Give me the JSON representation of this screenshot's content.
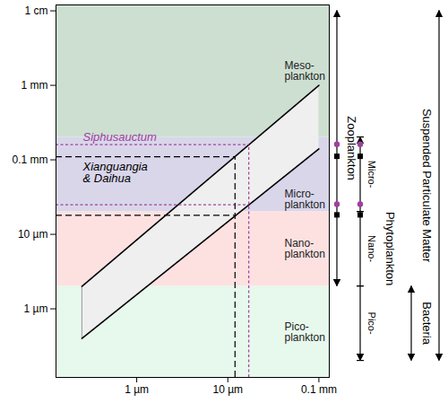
{
  "chart_data": {
    "type": "line",
    "log": true,
    "xlim": [
      0.13,
      130
    ],
    "xticks": [
      {
        "value": 1,
        "label": "1 µm"
      },
      {
        "value": 10,
        "label": "10 µm"
      },
      {
        "value": 100,
        "label": "0.1 mm"
      }
    ],
    "ylim": [
      0.12,
      12000
    ],
    "yticks": [
      {
        "value": 1,
        "label": "1 µm"
      },
      {
        "value": 10,
        "label": "10 µm"
      },
      {
        "value": 100,
        "label": "0.1 mm"
      },
      {
        "value": 1000,
        "label": "1 mm"
      },
      {
        "value": 10000,
        "label": "1 cm"
      }
    ],
    "size_classes": [
      {
        "label": [
          "Meso-",
          "plankton"
        ],
        "range": [
          200,
          12000
        ],
        "color": "#cddfd1"
      },
      {
        "label": [
          "Micro-",
          "plankton"
        ],
        "range": [
          20,
          200
        ],
        "color": "#d9d6ea"
      },
      {
        "label": [
          "Nano-",
          "plankton"
        ],
        "range": [
          2,
          20
        ],
        "color": "#fde1e1"
      },
      {
        "label": [
          "Pico-",
          "plankton"
        ],
        "range": [
          0.12,
          2
        ],
        "color": "#e7f8ec"
      }
    ],
    "capture_band": {
      "color": "#efefef",
      "x": [
        0.25,
        100
      ],
      "lower": [
        0.4,
        140
      ],
      "upper": [
        2,
        1000
      ]
    },
    "organisms": [
      {
        "label": [
          "Siphusauctum"
        ],
        "color": "#a040a0",
        "line_style": "dotted",
        "marker": "circle",
        "x": 17,
        "y_range": [
          25,
          160
        ]
      },
      {
        "label": [
          "Xianguangia",
          "& Daihua"
        ],
        "color": "#000000",
        "line_style": "dashed",
        "marker": "square",
        "x": 12,
        "y_range": [
          18,
          110
        ]
      }
    ],
    "groups": [
      {
        "label": "Zooplankton",
        "range": [
          2,
          10000
        ]
      },
      {
        "label": "Phytoplankton",
        "range": [
          0.2,
          200
        ],
        "segments": [
          {
            "label": "Micro-",
            "range": [
              20,
              200
            ]
          },
          {
            "label": "Nano-",
            "range": [
              2,
              20
            ]
          },
          {
            "label": "Pico-",
            "range": [
              0.2,
              2
            ]
          }
        ]
      },
      {
        "label": "Suspended Particulate Matter",
        "range": [
          0.2,
          10000
        ]
      },
      {
        "label": "Bacteria",
        "range": [
          0.2,
          2
        ]
      }
    ]
  }
}
